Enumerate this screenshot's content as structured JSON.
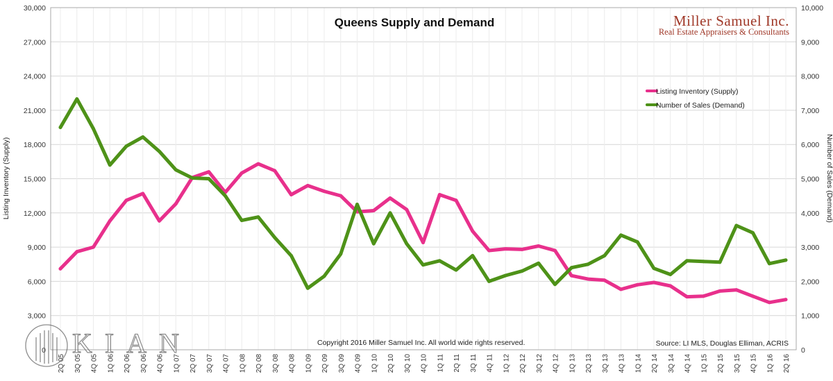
{
  "brand": {
    "name": "Miller Samuel Inc.",
    "tagline": "Real Estate Appraisers & Consultants"
  },
  "watermark": {
    "text": "KIAN",
    "icon": "building-columns-logo-icon"
  },
  "chart_data": {
    "type": "line",
    "title": "Queens Supply and Demand",
    "ylabel_left": "Listing Inventory (Supply)",
    "ylabel_right": "Number of Sales (Demand)",
    "ylim_left": [
      0,
      30000
    ],
    "ylim_right": [
      0,
      10000
    ],
    "yticks_left": [
      "0",
      "3,000",
      "6,000",
      "9,000",
      "12,000",
      "15,000",
      "18,000",
      "21,000",
      "24,000",
      "27,000",
      "30,000"
    ],
    "yticks_right": [
      "0",
      "1,000",
      "2,000",
      "3,000",
      "4,000",
      "5,000",
      "6,000",
      "7,000",
      "8,000",
      "9,000",
      "10,000"
    ],
    "grid": true,
    "legend_position": "top-right",
    "categories": [
      "2Q 05",
      "3Q 05",
      "4Q 05",
      "1Q 06",
      "2Q 06",
      "3Q 06",
      "4Q 06",
      "1Q 07",
      "2Q 07",
      "3Q 07",
      "4Q 07",
      "1Q 08",
      "2Q 08",
      "3Q 08",
      "4Q 08",
      "1Q 09",
      "2Q 09",
      "3Q 09",
      "4Q 09",
      "1Q 10",
      "2Q 10",
      "3Q 10",
      "4Q 10",
      "1Q 11",
      "2Q 11",
      "3Q 11",
      "4Q 11",
      "1Q 12",
      "2Q 12",
      "3Q 12",
      "4Q 12",
      "1Q 13",
      "2Q 13",
      "3Q 13",
      "4Q 13",
      "1Q 14",
      "2Q 14",
      "3Q 14",
      "4Q 14",
      "1Q 15",
      "2Q 15",
      "3Q 15",
      "4Q 15",
      "1Q 16",
      "2Q 16"
    ],
    "series": [
      {
        "name": "Listing Inventory (Supply)",
        "axis": "left",
        "color": "#e8308c",
        "values": [
          7100,
          8600,
          9000,
          11300,
          13100,
          13700,
          11300,
          12800,
          15100,
          15600,
          13800,
          15500,
          16300,
          15700,
          13600,
          14400,
          13900,
          13500,
          12100,
          12200,
          13300,
          12300,
          9400,
          13600,
          13100,
          10400,
          8700,
          8850,
          8800,
          9100,
          8700,
          6500,
          6200,
          6100,
          5300,
          5700,
          5900,
          5600,
          4650,
          4700,
          5150,
          5250,
          4700,
          4150,
          4400
        ]
      },
      {
        "name": "Number of Sales (Demand)",
        "axis": "right",
        "color": "#4e9218",
        "values": [
          6500,
          7330,
          6460,
          5400,
          5950,
          6220,
          5800,
          5260,
          5020,
          5000,
          4500,
          3780,
          3880,
          3280,
          2750,
          1800,
          2150,
          2800,
          4250,
          3100,
          4000,
          3100,
          2480,
          2600,
          2330,
          2750,
          2000,
          2170,
          2300,
          2530,
          1910,
          2400,
          2500,
          2750,
          3350,
          3150,
          2380,
          2200,
          2600,
          2580,
          2560,
          3630,
          3420,
          2520,
          2620
        ]
      }
    ],
    "annotations": {
      "copyright": "Copyright 2016 Miller Samuel Inc.  All world wide rights reserved.",
      "source": "Source: LI MLS, Douglas Elliman, ACRIS"
    }
  }
}
